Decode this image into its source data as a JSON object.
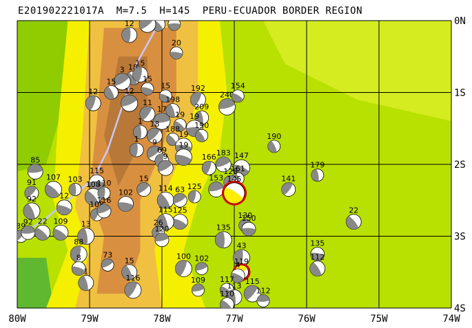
{
  "title": "E201902221017A  M=7.5  H=145  PERU-ECUADOR BORDER REGION",
  "colors": {
    "lowland": "#b8e000",
    "plain": "#d4ec20",
    "coast": "#8fcc00",
    "foothill": "#f4f000",
    "mid": "#f0c040",
    "high": "#d89040",
    "peak": "#b87838",
    "ocean_green": "#5fb830",
    "grid": "#000000",
    "trench": "#c8c8ff",
    "main_ring": "#e00000",
    "beach_dark": "#888888"
  },
  "axes": {
    "lat_labels": [
      {
        "text": "0N",
        "lat": 0
      },
      {
        "text": "1S",
        "lat": -1
      },
      {
        "text": "2S",
        "lat": -2
      },
      {
        "text": "3S",
        "lat": -3
      },
      {
        "text": "4S",
        "lat": -4
      }
    ],
    "lon_labels": [
      {
        "text": "80W",
        "lon": -80
      },
      {
        "text": "79W",
        "lon": -79
      },
      {
        "text": "78W",
        "lon": -78
      },
      {
        "text": "77W",
        "lon": -77
      },
      {
        "text": "76W",
        "lon": -76
      },
      {
        "text": "75W",
        "lon": -75
      },
      {
        "text": "74W",
        "lon": -74
      }
    ]
  },
  "events": [
    {
      "lon": -77.83,
      "lat": -0.05,
      "depth": "15"
    },
    {
      "lon": -78.05,
      "lat": -0.05,
      "depth": "15"
    },
    {
      "lon": -78.45,
      "lat": -0.2,
      "depth": "12"
    },
    {
      "lon": -78.2,
      "lat": -0.05,
      "depth": "7.5"
    },
    {
      "lon": -77.8,
      "lat": -0.45,
      "depth": "20"
    },
    {
      "lon": -78.4,
      "lat": -0.8,
      "depth": "18"
    },
    {
      "lon": -78.3,
      "lat": -0.75,
      "depth": "15"
    },
    {
      "lon": -78.55,
      "lat": -0.85,
      "depth": "3"
    },
    {
      "lon": -78.2,
      "lat": -0.95,
      "depth": "15"
    },
    {
      "lon": -78.7,
      "lat": -1.0,
      "depth": "15"
    },
    {
      "lon": -78.95,
      "lat": -1.15,
      "depth": "12"
    },
    {
      "lon": -78.45,
      "lat": -1.15,
      "depth": "12"
    },
    {
      "lon": -77.95,
      "lat": -1.05,
      "depth": "15"
    },
    {
      "lon": -77.85,
      "lat": -1.25,
      "depth": "198"
    },
    {
      "lon": -77.5,
      "lat": -1.1,
      "depth": "192"
    },
    {
      "lon": -77.1,
      "lat": -1.2,
      "depth": "240"
    },
    {
      "lon": -76.95,
      "lat": -1.05,
      "depth": "154"
    },
    {
      "lon": -77.45,
      "lat": -1.35,
      "depth": "209"
    },
    {
      "lon": -78.2,
      "lat": -1.3,
      "depth": "11"
    },
    {
      "lon": -78.0,
      "lat": -1.4,
      "depth": "17"
    },
    {
      "lon": -77.75,
      "lat": -1.45,
      "depth": "19"
    },
    {
      "lon": -78.3,
      "lat": -1.55,
      "depth": "1"
    },
    {
      "lon": -78.1,
      "lat": -1.6,
      "depth": "18"
    },
    {
      "lon": -77.55,
      "lat": -1.5,
      "depth": "19"
    },
    {
      "lon": -77.85,
      "lat": -1.65,
      "depth": "188"
    },
    {
      "lon": -78.35,
      "lat": -1.8,
      "depth": "1"
    },
    {
      "lon": -78.1,
      "lat": -1.85,
      "depth": "9"
    },
    {
      "lon": -77.7,
      "lat": -1.75,
      "depth": "19"
    },
    {
      "lon": -77.45,
      "lat": -1.6,
      "depth": "190"
    },
    {
      "lon": -78.0,
      "lat": -1.95,
      "depth": "69"
    },
    {
      "lon": -77.95,
      "lat": -2.05,
      "depth": "9"
    },
    {
      "lon": -77.7,
      "lat": -1.9,
      "depth": "19"
    },
    {
      "lon": -76.45,
      "lat": -1.75,
      "depth": "190"
    },
    {
      "lon": -77.35,
      "lat": -2.05,
      "depth": "166"
    },
    {
      "lon": -77.15,
      "lat": -2.0,
      "depth": "183"
    },
    {
      "lon": -76.9,
      "lat": -2.05,
      "depth": "147"
    },
    {
      "lon": -76.95,
      "lat": -2.2,
      "depth": "161"
    },
    {
      "lon": -77.05,
      "lat": -2.25,
      "depth": "128"
    },
    {
      "lon": -77.25,
      "lat": -2.35,
      "depth": "153"
    },
    {
      "lon": -77.0,
      "lat": -2.4,
      "depth": "145",
      "main": true
    },
    {
      "lon": -75.85,
      "lat": -2.15,
      "depth": "179"
    },
    {
      "lon": -76.25,
      "lat": -2.35,
      "depth": "141"
    },
    {
      "lon": -79.75,
      "lat": -2.1,
      "depth": "85"
    },
    {
      "lon": -79.5,
      "lat": -2.35,
      "depth": "107"
    },
    {
      "lon": -79.2,
      "lat": -2.35,
      "depth": "103"
    },
    {
      "lon": -79.8,
      "lat": -2.4,
      "depth": "91"
    },
    {
      "lon": -78.9,
      "lat": -2.25,
      "depth": "115"
    },
    {
      "lon": -78.95,
      "lat": -2.45,
      "depth": "108"
    },
    {
      "lon": -78.8,
      "lat": -2.4,
      "depth": "110"
    },
    {
      "lon": -78.25,
      "lat": -2.35,
      "depth": "15"
    },
    {
      "lon": -78.5,
      "lat": -2.55,
      "depth": "102"
    },
    {
      "lon": -77.95,
      "lat": -2.5,
      "depth": "114"
    },
    {
      "lon": -77.55,
      "lat": -2.45,
      "depth": "125"
    },
    {
      "lon": -77.75,
      "lat": -2.5,
      "depth": "63"
    },
    {
      "lon": -79.35,
      "lat": -2.6,
      "depth": "12"
    },
    {
      "lon": -79.8,
      "lat": -2.65,
      "depth": "92"
    },
    {
      "lon": -78.9,
      "lat": -2.7,
      "depth": "108"
    },
    {
      "lon": -78.8,
      "lat": -2.65,
      "depth": "116"
    },
    {
      "lon": -77.75,
      "lat": -2.8,
      "depth": "125"
    },
    {
      "lon": -77.95,
      "lat": -2.8,
      "depth": "115"
    },
    {
      "lon": -78.05,
      "lat": -2.95,
      "depth": "26"
    },
    {
      "lon": -78.0,
      "lat": -3.05,
      "depth": "120"
    },
    {
      "lon": -79.4,
      "lat": -2.95,
      "depth": "109"
    },
    {
      "lon": -79.05,
      "lat": -3.0,
      "depth": "13"
    },
    {
      "lon": -79.95,
      "lat": -3.0,
      "depth": "39"
    },
    {
      "lon": -79.85,
      "lat": -2.95,
      "depth": "92"
    },
    {
      "lon": -79.65,
      "lat": -2.95,
      "depth": "22"
    },
    {
      "lon": -77.15,
      "lat": -3.05,
      "depth": "135"
    },
    {
      "lon": -76.85,
      "lat": -2.85,
      "depth": "130"
    },
    {
      "lon": -76.8,
      "lat": -2.9,
      "depth": "150"
    },
    {
      "lon": -75.35,
      "lat": -2.8,
      "depth": "22"
    },
    {
      "lon": -76.9,
      "lat": -3.3,
      "depth": "43"
    },
    {
      "lon": -76.9,
      "lat": -3.5,
      "depth": "119",
      "main2": true
    },
    {
      "lon": -75.85,
      "lat": -3.25,
      "depth": "135"
    },
    {
      "lon": -75.85,
      "lat": -3.45,
      "depth": "112"
    },
    {
      "lon": -79.15,
      "lat": -3.25,
      "depth": "88"
    },
    {
      "lon": -78.75,
      "lat": -3.4,
      "depth": "73"
    },
    {
      "lon": -79.15,
      "lat": -3.45,
      "depth": "8"
    },
    {
      "lon": -78.45,
      "lat": -3.5,
      "depth": "15"
    },
    {
      "lon": -77.7,
      "lat": -3.45,
      "depth": "100"
    },
    {
      "lon": -77.45,
      "lat": -3.45,
      "depth": "102"
    },
    {
      "lon": -76.95,
      "lat": -3.55,
      "depth": "4"
    },
    {
      "lon": -79.05,
      "lat": -3.65,
      "depth": "1"
    },
    {
      "lon": -78.4,
      "lat": -3.75,
      "depth": "116"
    },
    {
      "lon": -77.5,
      "lat": -3.75,
      "depth": "109"
    },
    {
      "lon": -77.1,
      "lat": -3.75,
      "depth": "117"
    },
    {
      "lon": -77.0,
      "lat": -3.85,
      "depth": "113"
    },
    {
      "lon": -76.75,
      "lat": -3.8,
      "depth": "115"
    },
    {
      "lon": -76.6,
      "lat": -3.9,
      "depth": "112"
    },
    {
      "lon": -77.1,
      "lat": -3.95,
      "depth": "110"
    }
  ],
  "trench": [
    [
      -78.05,
      -0.05
    ],
    [
      -78.35,
      -0.6
    ],
    [
      -78.55,
      -1.2
    ],
    [
      -78.75,
      -1.8
    ],
    [
      -78.95,
      -2.2
    ],
    [
      -79.3,
      -2.5
    ],
    [
      -79.6,
      -2.75
    ],
    [
      -79.9,
      -2.95
    ]
  ]
}
